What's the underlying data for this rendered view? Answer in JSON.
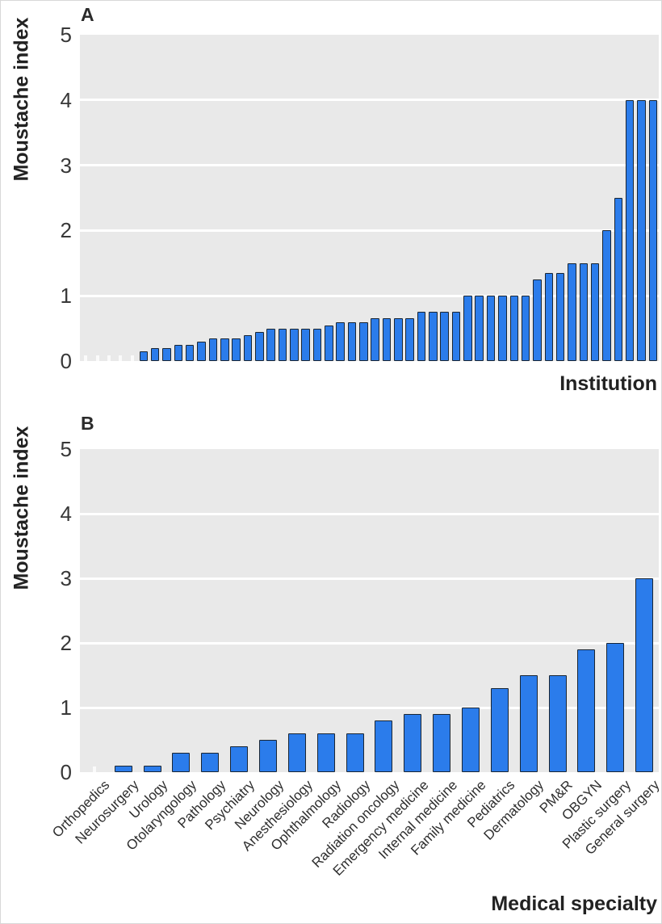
{
  "figure": {
    "bar_fill_color": "#2b7ceb",
    "bar_border_color": "#1a2633",
    "plot_background_color": "#e9e9e9",
    "gridline_color": "#ffffff",
    "text_color": "#2b2b2b"
  },
  "chart_data": [
    {
      "id": "a",
      "type": "bar",
      "panel_label": "A",
      "ylabel": "Moustache index",
      "xlabel": "Institution",
      "ylim": [
        0,
        5
      ],
      "yticks": [
        0,
        1,
        2,
        3,
        4,
        5
      ],
      "grid": "horizontal white gridlines on gray panel, legend none",
      "x_tick_labels_shown": false,
      "n_categories": 50,
      "values": [
        0,
        0,
        0,
        0,
        0,
        0.15,
        0.2,
        0.2,
        0.25,
        0.25,
        0.3,
        0.35,
        0.35,
        0.35,
        0.4,
        0.45,
        0.5,
        0.5,
        0.5,
        0.5,
        0.5,
        0.55,
        0.6,
        0.6,
        0.6,
        0.65,
        0.65,
        0.65,
        0.65,
        0.75,
        0.75,
        0.75,
        0.75,
        1.0,
        1.0,
        1.0,
        1.0,
        1.0,
        1.0,
        1.25,
        1.35,
        1.35,
        1.5,
        1.5,
        1.5,
        2.0,
        2.5,
        4.0,
        4.0,
        4.0
      ]
    },
    {
      "id": "b",
      "type": "bar",
      "panel_label": "B",
      "ylabel": "Moustache index",
      "xlabel": "Medical specialty",
      "ylim": [
        0,
        5
      ],
      "yticks": [
        0,
        1,
        2,
        3,
        4,
        5
      ],
      "grid": "horizontal white gridlines on gray panel, legend none",
      "x_tick_labels_shown": true,
      "categories": [
        "Orthopedics",
        "Neurosurgery",
        "Urology",
        "Otolaryngology",
        "Pathology",
        "Psychiatry",
        "Neurology",
        "Anesthesiology",
        "Ophthalmology",
        "Radiology",
        "Radiation oncology",
        "Emergency medicine",
        "Internal medicine",
        "Family medicine",
        "Pediatrics",
        "Dermatology",
        "PM&R",
        "OBGYN",
        "Plastic surgery",
        "General surgery"
      ],
      "values": [
        0,
        0.1,
        0.1,
        0.3,
        0.3,
        0.4,
        0.5,
        0.6,
        0.6,
        0.6,
        0.8,
        0.9,
        0.9,
        1.0,
        1.3,
        1.5,
        1.5,
        1.9,
        2.0,
        3.0
      ]
    }
  ]
}
